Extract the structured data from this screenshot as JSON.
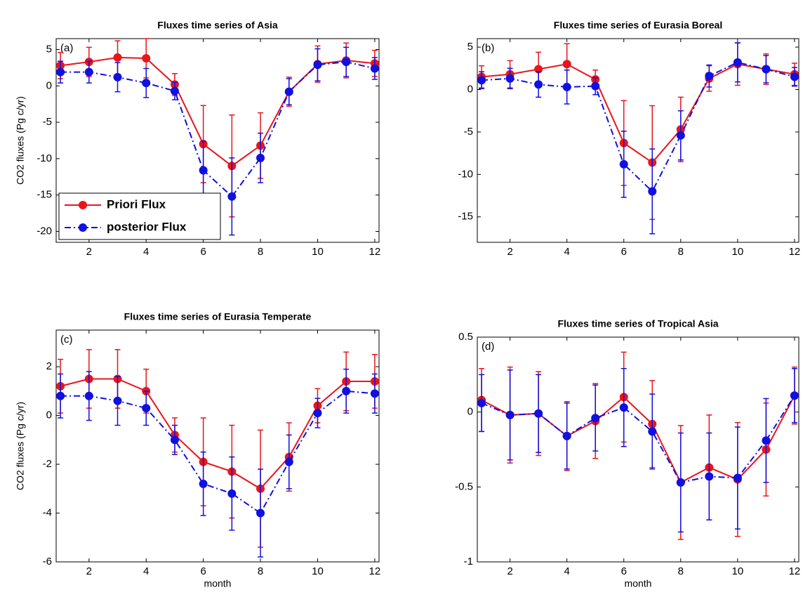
{
  "chart_data": [
    {
      "type": "line",
      "title": "Fluxes time series of Asia",
      "panel_label": "(a)",
      "ylabel": "CO2 fluxes (Pg c/yr)",
      "x": [
        1,
        2,
        3,
        4,
        5,
        6,
        7,
        8,
        9,
        10,
        11,
        12
      ],
      "xlim": [
        0.85,
        12.15
      ],
      "xticks": [
        2,
        4,
        6,
        8,
        10,
        12
      ],
      "ylim": [
        -21.5,
        6.5
      ],
      "yticks": [
        -20,
        -15,
        -10,
        -5,
        0,
        5
      ],
      "legend": "lower left",
      "series": [
        {
          "name": "Priori Flux",
          "color": "#e8151b",
          "linestyle": "solid",
          "values": [
            2.8,
            3.3,
            3.9,
            3.8,
            0.2,
            -8,
            -11,
            -8.2,
            -0.8,
            3,
            3.5,
            3.1
          ],
          "error": [
            1.8,
            2,
            2.3,
            2.7,
            1.5,
            5.3,
            7,
            4.5,
            2,
            2.5,
            2.4,
            1.8
          ]
        },
        {
          "name": "posterior Flux",
          "color": "#1010e0",
          "linestyle": "dashdot",
          "values": [
            1.9,
            1.9,
            1.2,
            0.4,
            -0.7,
            -11.6,
            -15.2,
            -9.9,
            -0.8,
            2.9,
            3.3,
            2.4
          ],
          "error": [
            1.5,
            1.5,
            2,
            2,
            1.2,
            4,
            5.3,
            3.4,
            1.8,
            2.2,
            2,
            1.5
          ]
        }
      ]
    },
    {
      "type": "line",
      "title": "Fluxes time series of Eurasia Boreal",
      "panel_label": "(b)",
      "x": [
        1,
        2,
        3,
        4,
        5,
        6,
        7,
        8,
        9,
        10,
        11,
        12
      ],
      "xlim": [
        0.85,
        12.15
      ],
      "xticks": [
        2,
        4,
        6,
        8,
        10,
        12
      ],
      "ylim": [
        -18,
        6
      ],
      "yticks": [
        -15,
        -10,
        -5,
        0,
        5
      ],
      "series": [
        {
          "color": "#e8151b",
          "linestyle": "solid",
          "values": [
            1.5,
            1.8,
            2.4,
            3,
            1.2,
            -6.3,
            -8.6,
            -4.7,
            1.3,
            3,
            2.4,
            1.8
          ],
          "error": [
            1.3,
            1.6,
            2,
            2.4,
            1.1,
            5,
            6.7,
            3.8,
            1.5,
            2.5,
            1.8,
            1.3
          ]
        },
        {
          "color": "#1010e0",
          "linestyle": "dashdot",
          "values": [
            1.1,
            1.3,
            0.6,
            0.3,
            0.4,
            -8.8,
            -12,
            -5.4,
            1.6,
            3.2,
            2.4,
            1.5
          ],
          "error": [
            1,
            1.2,
            1.5,
            2,
            1,
            3.9,
            5,
            2.9,
            1.3,
            2.3,
            1.6,
            1.1
          ]
        }
      ]
    },
    {
      "type": "line",
      "title": "Fluxes time series of Eurasia Temperate",
      "panel_label": "(c)",
      "ylabel": "CO2 fluxes (Pg c/yr)",
      "xlabel": "month",
      "x": [
        1,
        2,
        3,
        4,
        5,
        6,
        7,
        8,
        9,
        10,
        11,
        12
      ],
      "xlim": [
        0.85,
        12.15
      ],
      "xticks": [
        2,
        4,
        6,
        8,
        10,
        12
      ],
      "ylim": [
        -6,
        3.5
      ],
      "yticks": [
        -6,
        -4,
        -2,
        0,
        2
      ],
      "series": [
        {
          "color": "#e8151b",
          "linestyle": "solid",
          "values": [
            1.2,
            1.5,
            1.5,
            1,
            -0.8,
            -1.9,
            -2.3,
            -3,
            -1.7,
            0.4,
            1.4,
            1.4
          ],
          "error": [
            1.1,
            1.2,
            1.2,
            0.9,
            0.7,
            1.8,
            1.9,
            2.4,
            1.4,
            0.7,
            1.2,
            1.1
          ]
        },
        {
          "color": "#1010e0",
          "linestyle": "dashdot",
          "values": [
            0.8,
            0.8,
            0.6,
            0.3,
            -1,
            -2.8,
            -3.2,
            -4,
            -1.9,
            0.1,
            1,
            0.9
          ],
          "error": [
            0.9,
            1,
            1,
            0.7,
            0.6,
            1.3,
            1.5,
            1.8,
            1.1,
            0.6,
            0.9,
            0.8
          ]
        }
      ]
    },
    {
      "type": "line",
      "title": "Fluxes time series of Tropical Asia",
      "panel_label": "(d)",
      "xlabel": "month",
      "x": [
        1,
        2,
        3,
        4,
        5,
        6,
        7,
        8,
        9,
        10,
        11,
        12
      ],
      "xlim": [
        0.85,
        12.15
      ],
      "xticks": [
        2,
        4,
        6,
        8,
        10,
        12
      ],
      "ylim": [
        -1,
        0.5
      ],
      "yticks": [
        -1,
        -0.5,
        0,
        0.5
      ],
      "series": [
        {
          "color": "#e8151b",
          "linestyle": "solid",
          "values": [
            0.08,
            -0.02,
            -0.01,
            -0.16,
            -0.06,
            0.1,
            -0.08,
            -0.47,
            -0.37,
            -0.45,
            -0.25,
            0.11
          ],
          "error": [
            0.21,
            0.32,
            0.28,
            0.23,
            0.25,
            0.3,
            0.29,
            0.38,
            0.35,
            0.38,
            0.31,
            0.19
          ]
        },
        {
          "color": "#1010e0",
          "linestyle": "dashdot",
          "values": [
            0.06,
            -0.02,
            -0.01,
            -0.16,
            -0.04,
            0.03,
            -0.13,
            -0.47,
            -0.43,
            -0.44,
            -0.19,
            0.11
          ],
          "error": [
            0.19,
            0.3,
            0.26,
            0.22,
            0.22,
            0.26,
            0.25,
            0.33,
            0.29,
            0.34,
            0.28,
            0.18
          ]
        }
      ]
    }
  ]
}
